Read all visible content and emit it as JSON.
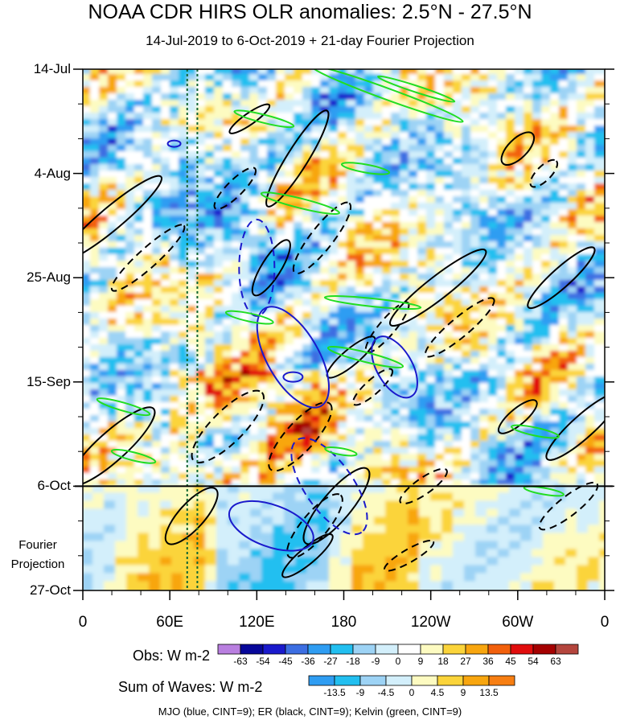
{
  "title": "NOAA CDR HIRS OLR anomalies: 2.5°N - 27.5°N",
  "subtitle": "14-Jul-2019 to 6-Oct-2019 + 21-day Fourier Projection",
  "projection_label": [
    "Fourier",
    "Projection"
  ],
  "legend_text": "MJO (blue, CINT=9); ER (black, CINT=9); Kelvin (green, CINT=9)",
  "colors": {
    "mjo": "#1a1acc",
    "er": "#000000",
    "kelvin": "#22dd22",
    "dotted_line": "#116633"
  },
  "chart_data": {
    "type": "heatmap",
    "title": "NOAA CDR HIRS OLR anomalies: 2.5°N - 27.5°N",
    "subtitle": "14-Jul-2019 to 6-Oct-2019 + 21-day Fourier Projection",
    "x_tick_labels": [
      "0",
      "60E",
      "120E",
      "180",
      "120W",
      "60W",
      "0"
    ],
    "x_tick_lon": [
      0,
      60,
      120,
      180,
      240,
      300,
      360
    ],
    "xlim": [
      0,
      360
    ],
    "y_tick_labels": [
      "14-Jul",
      "4-Aug",
      "25-Aug",
      "15-Sep",
      "6-Oct",
      "27-Oct"
    ],
    "y_tick_day": [
      0,
      21,
      42,
      63,
      84,
      105
    ],
    "ylim_day": [
      0,
      105
    ],
    "observation_end_day": 84,
    "dotted_lon_lines": [
      72,
      79
    ],
    "obs_colorbar": {
      "title": "Obs: W m-2",
      "levels": [
        "-63",
        "-54",
        "-45",
        "-36",
        "-27",
        "-18",
        "-9",
        "0",
        "9",
        "18",
        "27",
        "36",
        "45",
        "54",
        "63"
      ],
      "colors": [
        "#b97fe0",
        "#07079a",
        "#1a1acc",
        "#3c6ee2",
        "#2f9df2",
        "#22bff0",
        "#9dd3f5",
        "#d3effb",
        "#ffffff",
        "#fdfbc1",
        "#fbd43a",
        "#f8a60f",
        "#f2600c",
        "#e10d0d",
        "#a50101",
        "#b4453d"
      ]
    },
    "waves_colorbar": {
      "title": "Sum of Waves: W m-2",
      "levels": [
        "-13.5",
        "-9",
        "-4.5",
        "0",
        "4.5",
        "9",
        "13.5"
      ],
      "colors": [
        "#2f9df2",
        "#22bff0",
        "#9dd3f5",
        "#d3effb",
        "#fdfbc1",
        "#fbd43a",
        "#f8a60f",
        "#f77e12"
      ]
    }
  }
}
